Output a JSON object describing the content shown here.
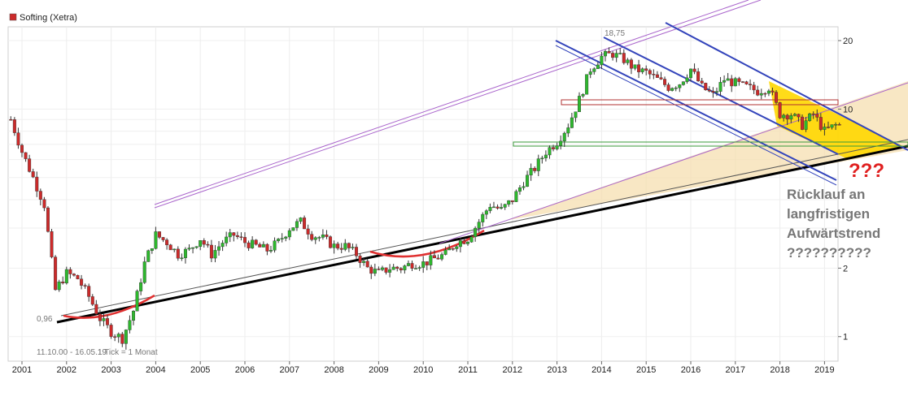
{
  "chart_data": {
    "type": "candlestick",
    "title": "Softing (Xetra)",
    "legend_position": "top-left",
    "grid": true,
    "y_scale": "log",
    "ylim": [
      0.78,
      23
    ],
    "y_ticks": [
      {
        "value": 20,
        "label": "20"
      },
      {
        "value": 10,
        "label": "10"
      },
      {
        "value": 2,
        "label": "2"
      },
      {
        "value": 1,
        "label": "1"
      }
    ],
    "x_ticks": [
      "2001",
      "2002",
      "2003",
      "2004",
      "2005",
      "2006",
      "2007",
      "2008",
      "2009",
      "2010",
      "2011",
      "2012",
      "2013",
      "2014",
      "2015",
      "2016",
      "2017",
      "2018",
      "2019"
    ],
    "date_range_label": "11.10.00 - 16.05.19",
    "interval_label": "1 Tick = 1 Monat",
    "low_label": "0,96",
    "high_label": "18,75",
    "colors": {
      "up": "#2db82d",
      "down": "#cc2a2a",
      "channel": "#3344bb",
      "purple": "#aa66cc",
      "trend": "#000000",
      "annotation": "#777777",
      "question": "#e02020",
      "triangle": "#f5dfb0",
      "triangle_recent": "#ffd700"
    },
    "series": [
      {
        "name": "Softing (Xetra)",
        "points": [
          [
            "2000-10",
            9.0
          ],
          [
            "2001-01",
            6.5
          ],
          [
            "2001-04",
            5.0
          ],
          [
            "2001-07",
            3.8
          ],
          [
            "2001-10",
            1.6
          ],
          [
            "2002-01",
            1.9
          ],
          [
            "2002-04",
            1.8
          ],
          [
            "2002-07",
            1.5
          ],
          [
            "2002-10",
            1.2
          ],
          [
            "2003-01",
            1.05
          ],
          [
            "2003-04",
            0.98
          ],
          [
            "2003-07",
            1.3
          ],
          [
            "2003-10",
            2.1
          ],
          [
            "2004-01",
            2.8
          ],
          [
            "2004-04",
            2.6
          ],
          [
            "2004-07",
            2.3
          ],
          [
            "2004-10",
            2.4
          ],
          [
            "2005-01",
            2.7
          ],
          [
            "2005-04",
            2.3
          ],
          [
            "2005-07",
            2.6
          ],
          [
            "2005-10",
            2.8
          ],
          [
            "2006-01",
            2.6
          ],
          [
            "2006-04",
            2.5
          ],
          [
            "2006-07",
            2.4
          ],
          [
            "2006-10",
            2.6
          ],
          [
            "2007-01",
            3.0
          ],
          [
            "2007-04",
            3.2
          ],
          [
            "2007-07",
            2.8
          ],
          [
            "2007-10",
            2.7
          ],
          [
            "2008-01",
            2.5
          ],
          [
            "2008-04",
            2.5
          ],
          [
            "2008-07",
            2.3
          ],
          [
            "2008-10",
            2.0
          ],
          [
            "2009-01",
            1.9
          ],
          [
            "2009-04",
            2.0
          ],
          [
            "2009-07",
            2.0
          ],
          [
            "2009-10",
            2.1
          ],
          [
            "2010-01",
            2.1
          ],
          [
            "2010-04",
            2.2
          ],
          [
            "2010-07",
            2.3
          ],
          [
            "2010-10",
            2.6
          ],
          [
            "2011-01",
            2.7
          ],
          [
            "2011-04",
            3.2
          ],
          [
            "2011-07",
            3.8
          ],
          [
            "2011-10",
            3.6
          ],
          [
            "2012-01",
            4.0
          ],
          [
            "2012-04",
            4.8
          ],
          [
            "2012-07",
            5.5
          ],
          [
            "2012-10",
            6.5
          ],
          [
            "2013-01",
            7.2
          ],
          [
            "2013-04",
            8.5
          ],
          [
            "2013-07",
            11.0
          ],
          [
            "2013-10",
            15.0
          ],
          [
            "2014-01",
            17.0
          ],
          [
            "2014-04",
            17.5
          ],
          [
            "2014-07",
            16.5
          ],
          [
            "2014-10",
            15.0
          ],
          [
            "2015-01",
            14.5
          ],
          [
            "2015-04",
            13.5
          ],
          [
            "2015-07",
            12.5
          ],
          [
            "2015-10",
            13.0
          ],
          [
            "2016-01",
            15.0
          ],
          [
            "2016-04",
            12.5
          ],
          [
            "2016-07",
            11.5
          ],
          [
            "2016-10",
            13.5
          ],
          [
            "2017-01",
            13.0
          ],
          [
            "2017-04",
            12.5
          ],
          [
            "2017-07",
            12.0
          ],
          [
            "2017-10",
            12.5
          ],
          [
            "2018-01",
            9.5
          ],
          [
            "2018-04",
            9.5
          ],
          [
            "2018-07",
            8.5
          ],
          [
            "2018-10",
            9.5
          ],
          [
            "2019-01",
            8.0
          ],
          [
            "2019-04",
            8.5
          ],
          [
            "2019-05",
            8.5
          ]
        ]
      }
    ],
    "annotations": [
      {
        "text": "???",
        "kind": "question"
      },
      {
        "text": "Rücklauf an",
        "kind": "annotation"
      },
      {
        "text": "langfristigen",
        "kind": "annotation"
      },
      {
        "text": "Aufwärtstrend",
        "kind": "annotation"
      },
      {
        "text": "??????????",
        "kind": "annotation"
      }
    ]
  }
}
